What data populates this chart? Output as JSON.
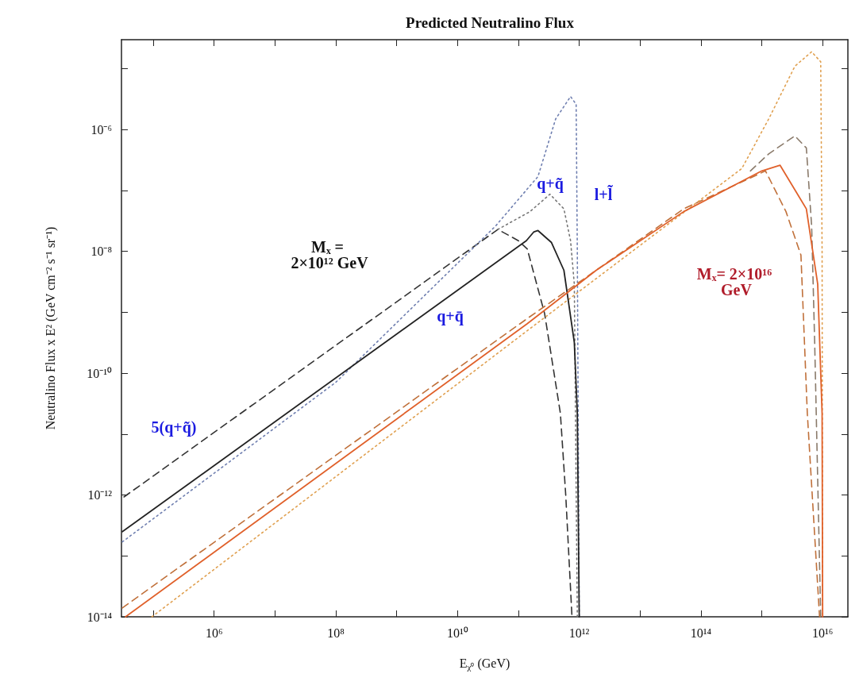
{
  "chart_data": {
    "type": "line",
    "title": "Predicted Neutralino Flux",
    "xlabel": "E$_{χ⁰}$ (GeV)",
    "ylabel": "Neutralino Flux x E² (GeV cm⁻² s⁻¹ sr⁻¹)",
    "log": "xy",
    "xlim": [
      30000.0,
      2.6e+16
    ],
    "ylim": [
      1e-14,
      3e-05
    ],
    "xticks": [
      {
        "value": 100000.0,
        "label": null
      },
      {
        "value": 1000000.0,
        "label": "10⁶"
      },
      {
        "value": 10000000.0,
        "label": null
      },
      {
        "value": 100000000.0,
        "label": "10⁸"
      },
      {
        "value": 1000000000.0,
        "label": null
      },
      {
        "value": 10000000000.0,
        "label": "10¹⁰"
      },
      {
        "value": 100000000000.0,
        "label": null
      },
      {
        "value": 1000000000000.0,
        "label": "10¹²"
      },
      {
        "value": 10000000000000.0,
        "label": null
      },
      {
        "value": 100000000000000.0,
        "label": "10¹⁴"
      },
      {
        "value": 1000000000000000.0,
        "label": null
      },
      {
        "value": 1e+16,
        "label": "10¹⁶"
      }
    ],
    "yticks": [
      {
        "value": 1e-14,
        "label": "10⁻¹⁴"
      },
      {
        "value": 1e-13,
        "label": null
      },
      {
        "value": 1e-12,
        "label": "10⁻¹²"
      },
      {
        "value": 1e-11,
        "label": null
      },
      {
        "value": 1e-10,
        "label": "10⁻¹⁰"
      },
      {
        "value": 1e-09,
        "label": null
      },
      {
        "value": 1e-08,
        "label": "10⁻⁸"
      },
      {
        "value": 1e-07,
        "label": null
      },
      {
        "value": 1e-06,
        "label": "10⁻⁶"
      },
      {
        "value": 1e-05,
        "label": null
      }
    ],
    "series": [
      {
        "color": "#222222",
        "line_style": "solid",
        "x": [
          31000.0,
          135000000000.0,
          180000000000.0,
          210000000000.0,
          350000000000.0,
          560000000000.0,
          830000000000.0,
          930000000000.0,
          1000000000000.0
        ],
        "values": [
          2.5e-13,
          1.5e-08,
          2.1e-08,
          2.2e-08,
          1.4e-08,
          4.9e-09,
          3.2e-10,
          2.2e-11,
          1e-14
        ]
      },
      {
        "color": "#333333",
        "line_style": "dashed",
        "x": [
          33000.0,
          46000000000.0,
          100000000000.0,
          140000000000.0,
          270000000000.0,
          490000000000.0,
          600000000000.0,
          760000000000.0
        ],
        "values": [
          9.3e-13,
          2.3e-08,
          1.5e-08,
          1.1e-08,
          9.5e-10,
          2.2e-11,
          1e-12,
          1e-14
        ]
      },
      {
        "color": "#777777",
        "line_style": "dotted",
        "x": [
          46000000000.0,
          155000000000.0,
          330000000000.0,
          560000000000.0,
          720000000000.0,
          830000000000.0,
          930000000000.0
        ],
        "values": [
          2.3e-08,
          4.5e-08,
          8.7e-08,
          5e-08,
          1.5e-08,
          2.9e-09,
          1e-14
        ]
      },
      {
        "color": "#6f7fb0",
        "line_style": "dotted",
        "x": [
          31000.0,
          100000000.0,
          42000000000.0,
          210000000000.0,
          410000000000.0,
          720000000000.0,
          890000000000.0,
          930000000000.0,
          1000000000000.0
        ],
        "values": [
          1.7e-13,
          7.1e-11,
          2.6e-08,
          1.7e-07,
          1.5e-06,
          3.5e-06,
          2.6e-06,
          1e-08,
          1e-14
        ]
      },
      {
        "color": "#e0602a",
        "line_style": "solid",
        "x": [
          35000.0,
          140000000000.0,
          1900000000000.0,
          52000000000000.0,
          1000000000000000.0,
          2000000000000000.0,
          5400000000000000.0,
          8300000000000000.0,
          9800000000000000.0,
          1e+16
        ],
        "values": [
          1e-14,
          6.5e-10,
          4.9e-09,
          4.5e-08,
          2.1e-07,
          2.6e-07,
          5e-08,
          2.9e-09,
          2.2e-11,
          1e-14
        ]
      },
      {
        "color": "#c0703a",
        "line_style": "dashed",
        "x": [
          31000.0,
          140000000000.0,
          52000000000000.0,
          1150000000000000.0,
          2500000000000000.0,
          4400000000000000.0,
          5600000000000000.0,
          8900000000000000.0
        ],
        "values": [
          1.4e-14,
          7.9e-10,
          5e-08,
          2.1e-07,
          4.5e-08,
          8.7e-09,
          2.2e-11,
          1e-14
        ]
      },
      {
        "color": "#8a7a6a",
        "line_style": "dashed",
        "x": [
          650000000000000.0,
          1300000000000000.0,
          3500000000000000.0,
          5400000000000000.0,
          6600000000000000.0,
          7400000000000000.0,
          9300000000000000.0
        ],
        "values": [
          2.1e-07,
          4e-07,
          7.9e-07,
          5e-07,
          2.6e-08,
          3.2e-10,
          1e-14
        ]
      },
      {
        "color": "#e0a050",
        "line_style": "dotted",
        "x": [
          95000.0,
          140000000000.0,
          470000000000000.0,
          1300000000000000.0,
          3500000000000000.0,
          6600000000000000.0,
          9300000000000000.0,
          9800000000000000.0,
          1e+16
        ],
        "values": [
          1e-14,
          5e-10,
          2.3e-07,
          1.5e-06,
          1.1e-05,
          1.9e-05,
          1.3e-05,
          1e-08,
          1e-14
        ]
      }
    ],
    "annotations": [
      "Mₓ = 2×10¹² GeV",
      "5(q+q̃)",
      "q+q̄",
      "q+q̃",
      "l+l̃",
      "Mₓ= 2×10¹⁶ GeV"
    ]
  }
}
